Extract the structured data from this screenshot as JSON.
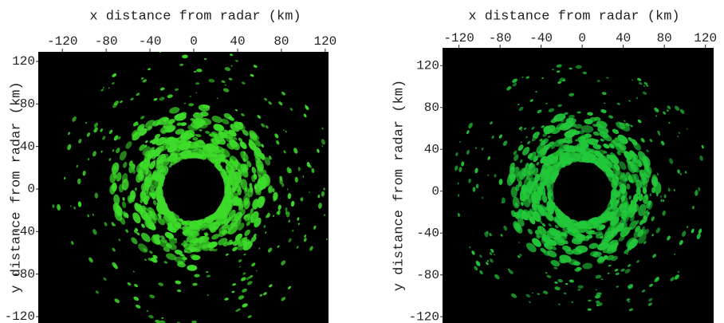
{
  "chart_data": [
    {
      "type": "image",
      "xlabel": "x distance from radar (km)",
      "ylabel": "y distance from radar (km)",
      "xlim": [
        -142,
        123
      ],
      "ylim": [
        -126,
        129
      ],
      "xticks": [
        -120,
        -80,
        -40,
        0,
        40,
        80,
        120
      ],
      "yticks": [
        -120,
        -80,
        -40,
        0,
        40,
        80,
        120
      ]
    },
    {
      "type": "image",
      "xlabel": "x distance from radar (km)",
      "ylabel": "y distance from radar (km)",
      "xlim": [
        -136,
        128
      ],
      "ylim": [
        -126,
        137
      ],
      "xticks": [
        -120,
        -80,
        -40,
        0,
        40,
        80,
        120
      ],
      "yticks": [
        -120,
        -80,
        -40,
        0,
        40,
        80,
        120
      ]
    }
  ]
}
